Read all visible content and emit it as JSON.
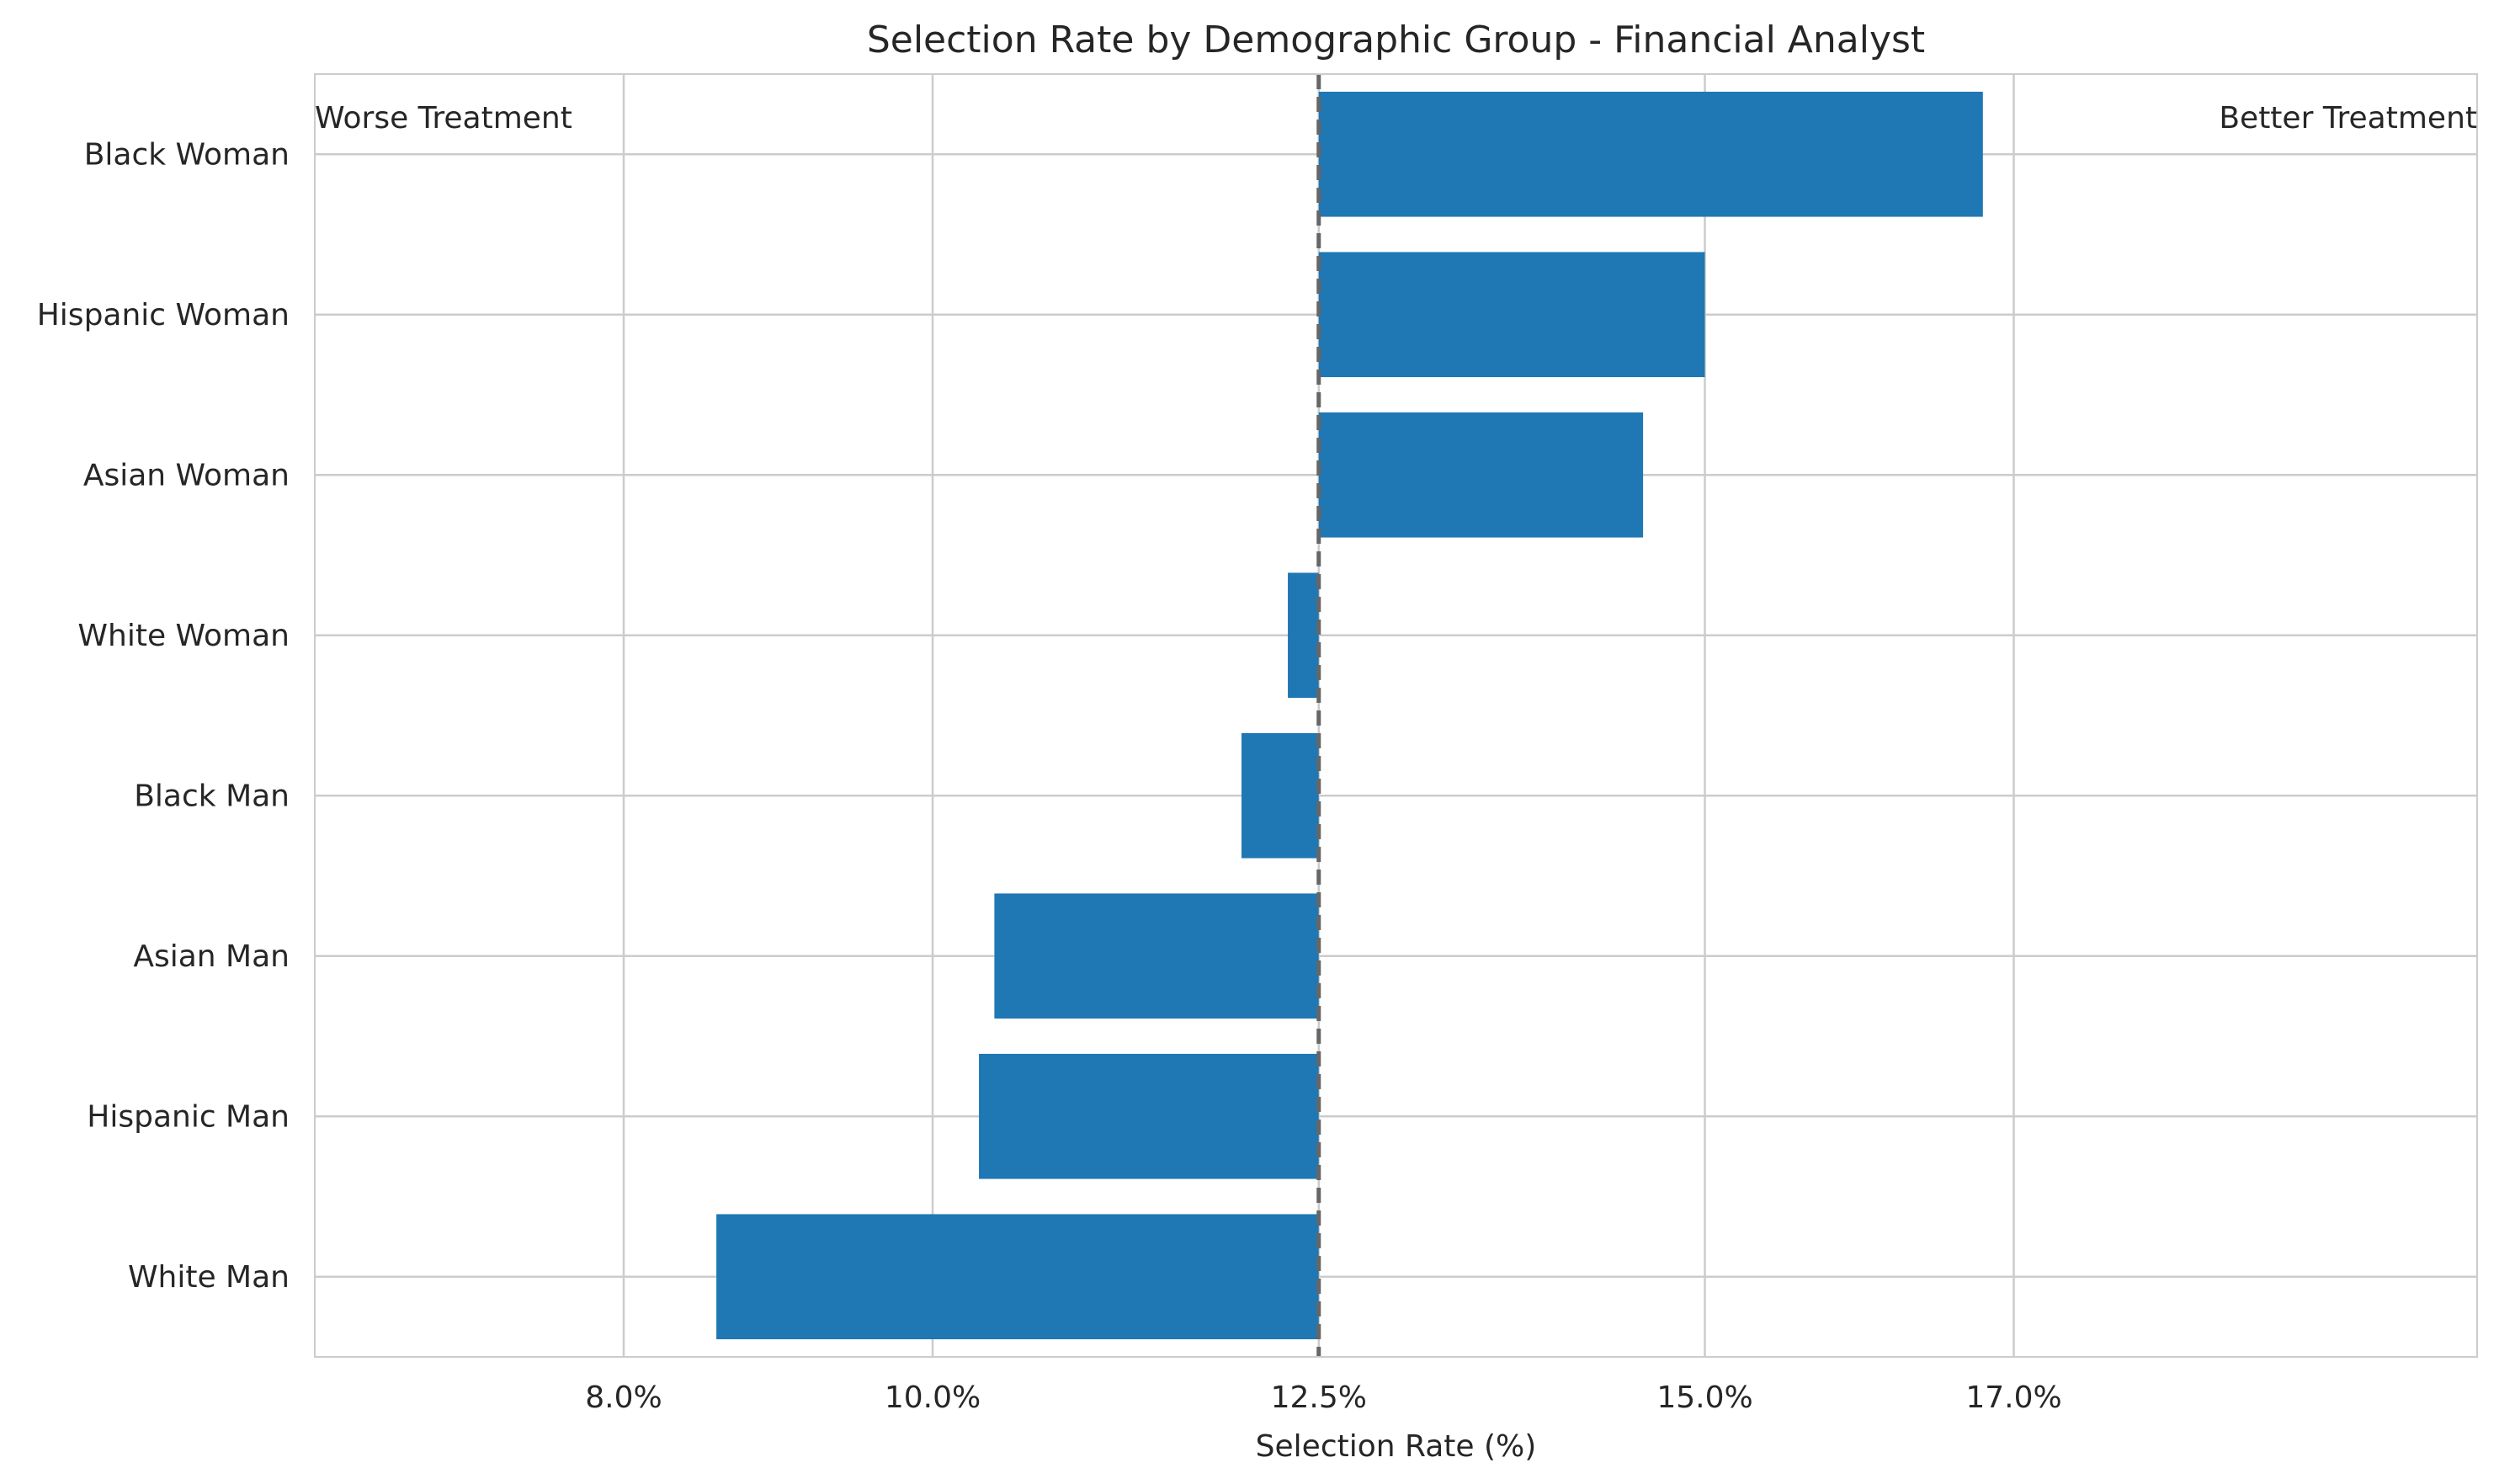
{
  "chart_data": {
    "type": "bar",
    "orientation": "horizontal",
    "title": "Selection Rate by Demographic Group - Financial Analyst",
    "xlabel": "Selection Rate (%)",
    "ylabel": "",
    "categories": [
      "Black Woman",
      "Hispanic Woman",
      "Asian Woman",
      "White Woman",
      "Black Man",
      "Asian Man",
      "Hispanic Man",
      "White Man"
    ],
    "values": [
      16.8,
      15.0,
      14.6,
      12.3,
      12.0,
      10.4,
      10.3,
      8.6
    ],
    "baseline": 12.5,
    "xlim": [
      6.0,
      20.0
    ],
    "xticks": [
      8.0,
      10.0,
      12.5,
      15.0,
      17.0
    ],
    "xtick_labels": [
      "8.0%",
      "10.0%",
      "12.5%",
      "15.0%",
      "17.0%"
    ],
    "grid": true,
    "bar_color": "#1f77b4",
    "reference_line_color": "#666666",
    "annotations": {
      "left": "Worse Treatment",
      "right": "Better Treatment"
    }
  }
}
